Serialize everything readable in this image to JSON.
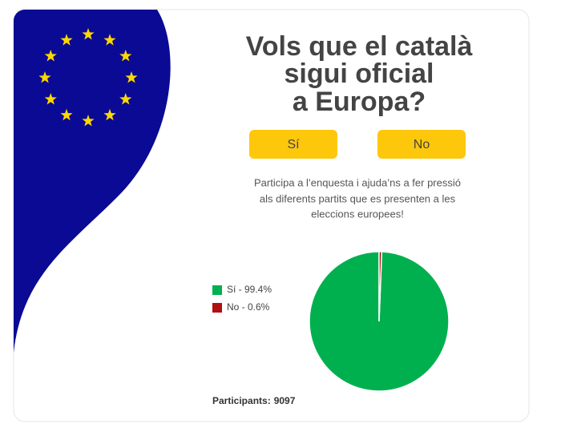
{
  "title": [
    "Vols que el català",
    "sigui oficial",
    "a Europa?"
  ],
  "buttons": [
    "Sí",
    "No"
  ],
  "description": [
    "Participa a l’enquesta i ajuda’ns a fer pressió",
    "als diferents partits que es presenten a les",
    "eleccions europees!"
  ],
  "chart_data": {
    "type": "pie",
    "values": [
      99.4,
      0.6
    ],
    "value_labels": [
      "Sí - 99.4%",
      "No - 0.6%"
    ],
    "colors": [
      "#00b04f",
      "#b01010"
    ]
  },
  "participants_label": "Participants:",
  "participants": 9097
}
